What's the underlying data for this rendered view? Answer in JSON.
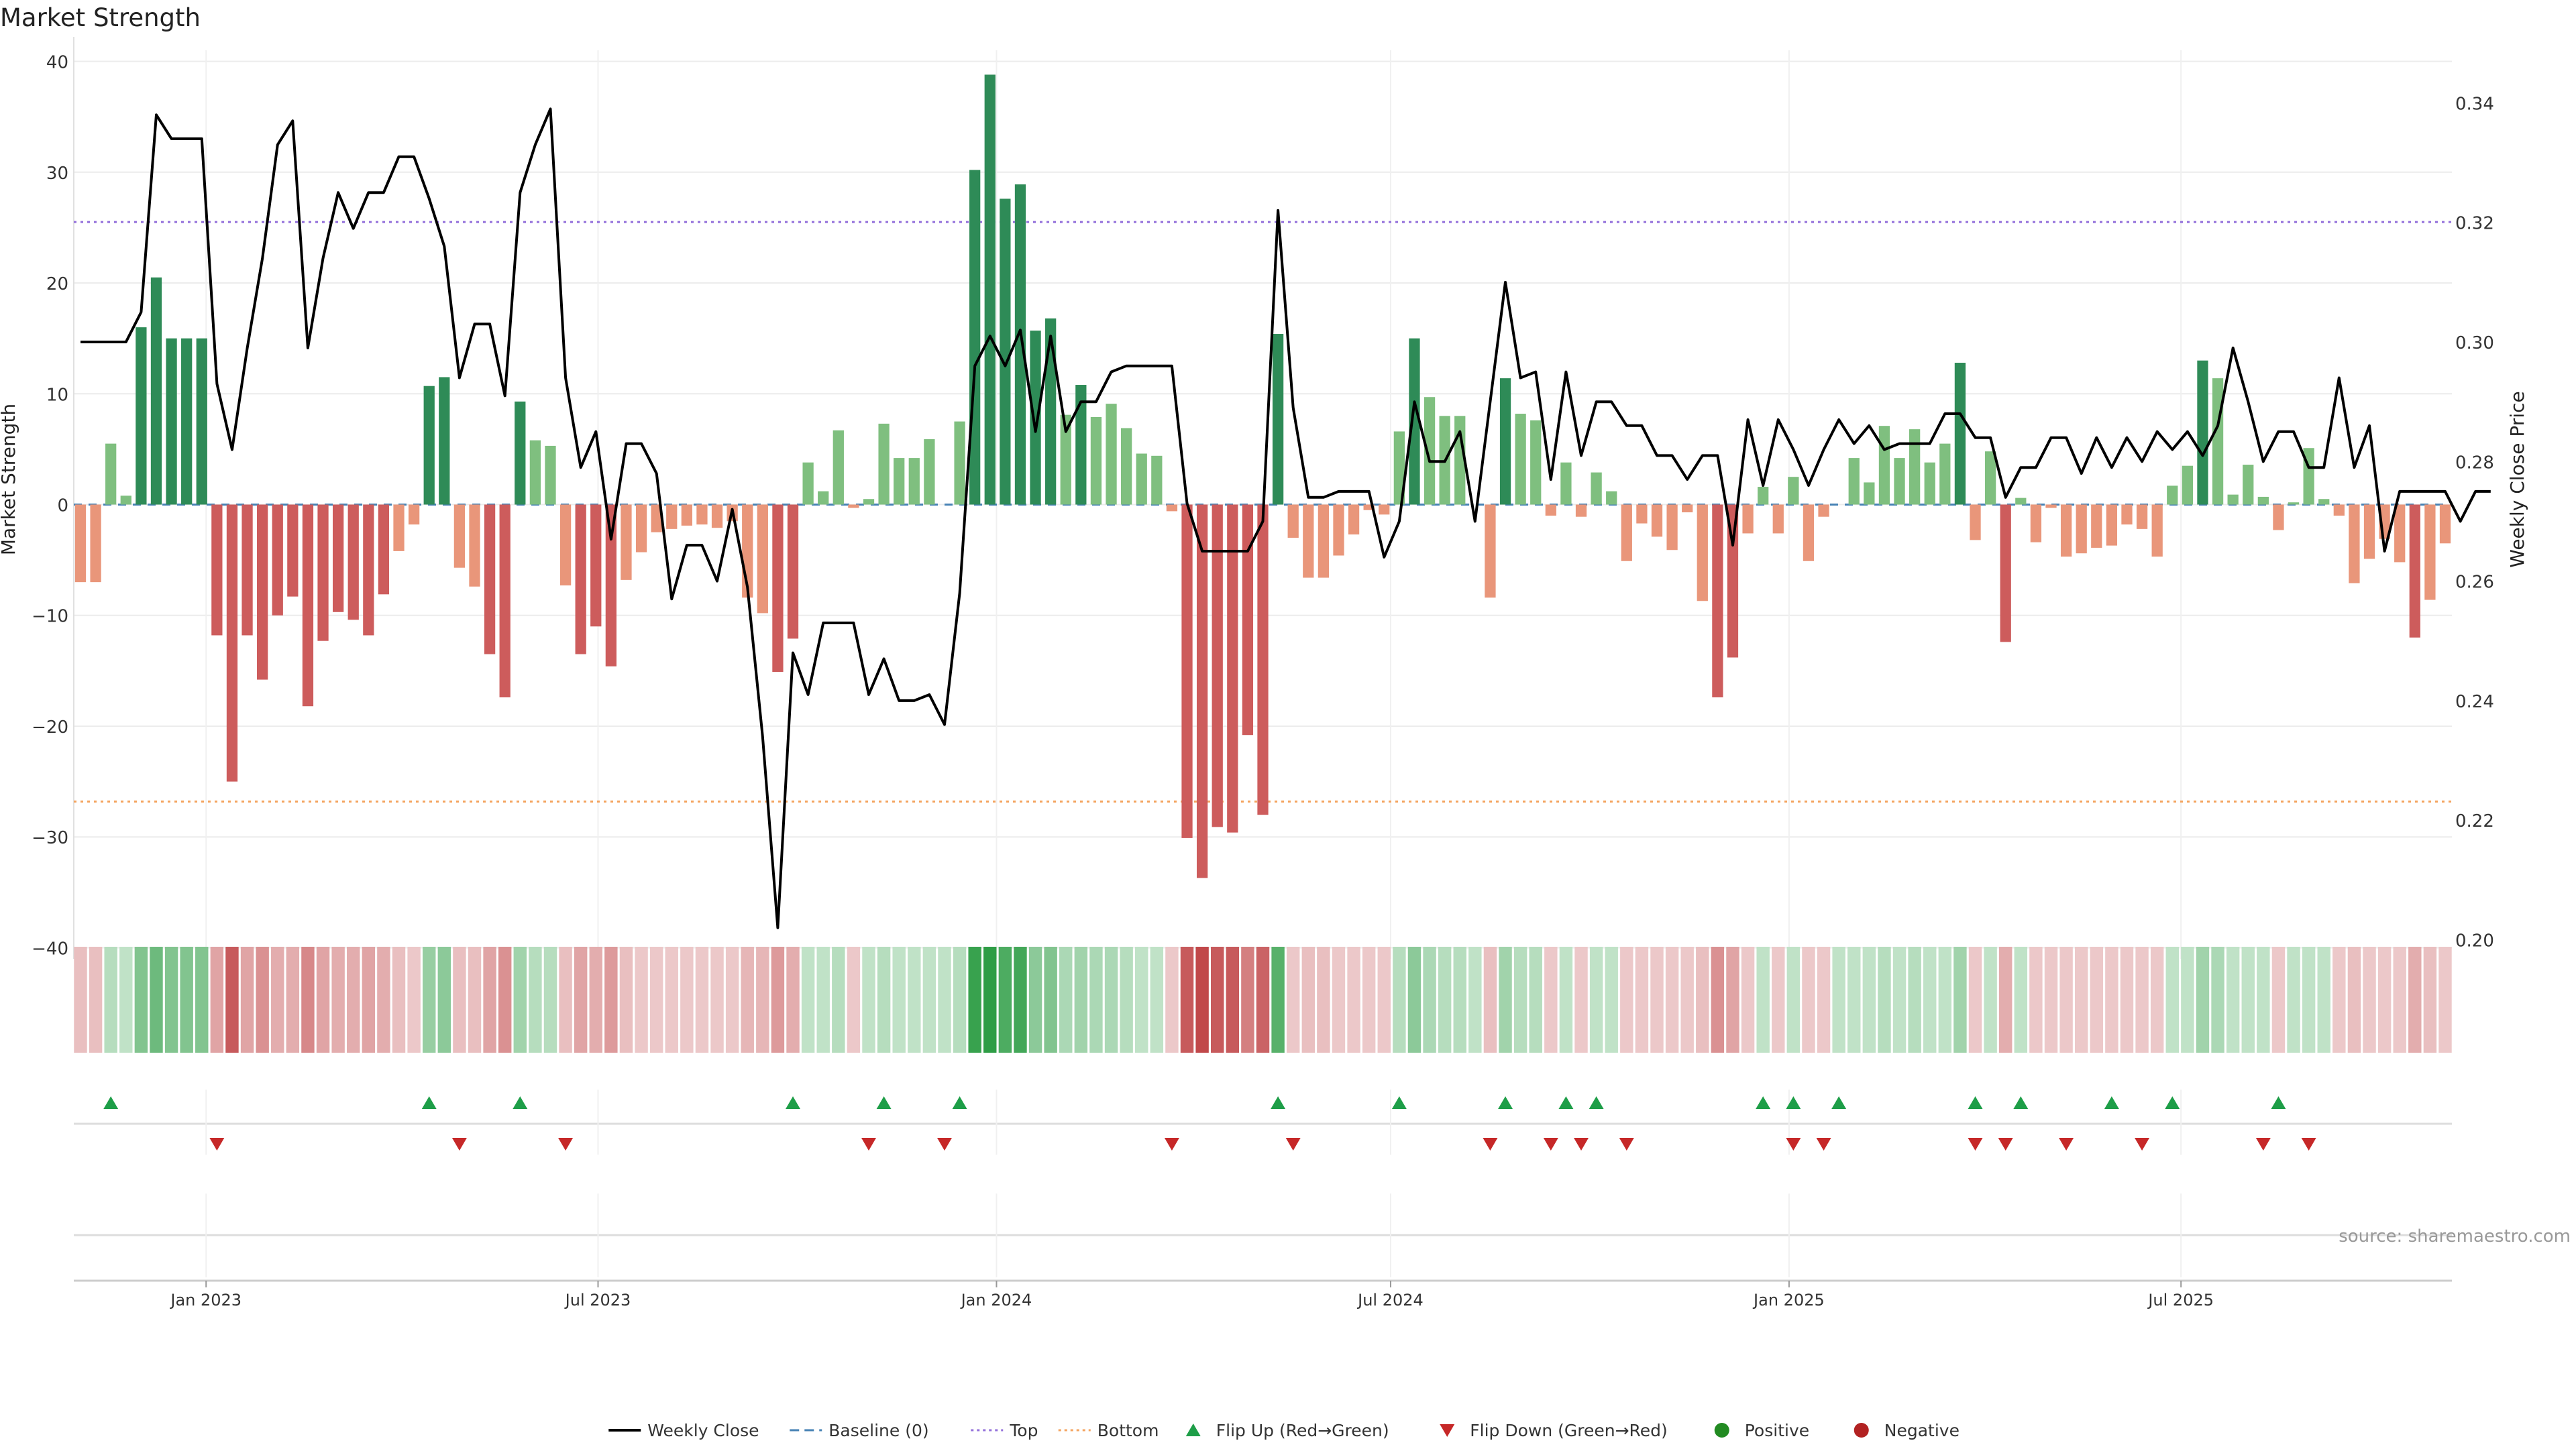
{
  "chart_data": {
    "type": "bar",
    "title": "Market Strength",
    "ylabel": "Market Strength",
    "y2label": "Weekly Close Price",
    "ylim": [
      -41,
      41
    ],
    "y2lim": [
      0.1968,
      0.3488
    ],
    "yticks": [
      40,
      30,
      20,
      10,
      0,
      -10,
      -20,
      -30,
      -40
    ],
    "y2ticks": [
      "0.34",
      "0.32",
      "0.30",
      "0.28",
      "0.26",
      "0.24",
      "0.22",
      "0.20"
    ],
    "y2tick_values": [
      0.34,
      0.32,
      0.3,
      0.28,
      0.26,
      0.24,
      0.22,
      0.2
    ],
    "top_line": 25.5,
    "bottom_line": -26.8,
    "x_start_date": "2022-11-04",
    "x_ticks": [
      "Jan 2023",
      "Jul 2023",
      "Jan 2024",
      "Jul 2024",
      "Jan 2025",
      "Jul 2025"
    ],
    "x_tick_dates": [
      "2023-01-01",
      "2023-07-01",
      "2024-01-01",
      "2024-07-01",
      "2025-01-01",
      "2025-07-01"
    ],
    "grid": true,
    "source": "source: sharemaestro.com",
    "colors": {
      "strong_green": "#2e8b57",
      "light_green": "#7fbf7f",
      "strong_red": "#cd5c5c",
      "light_red": "#e9967a",
      "close_line": "#000000",
      "baseline": "#4682b4",
      "top": "#9370db",
      "bottom": "#f4a460",
      "flip_up": "#1e9e48",
      "flip_down": "#c62828",
      "positive": "#228b22",
      "negative": "#b22222"
    },
    "legend": [
      {
        "label": "Weekly Close",
        "kind": "line",
        "color": "#000000"
      },
      {
        "label": "Baseline (0)",
        "kind": "dash",
        "color": "#4682b4"
      },
      {
        "label": "Top",
        "kind": "dot",
        "color": "#9370db"
      },
      {
        "label": "Bottom",
        "kind": "dot",
        "color": "#f4a460"
      },
      {
        "label": "Flip Up (Red→Green)",
        "kind": "tri-up",
        "color": "#1e9e48"
      },
      {
        "label": "Flip Down (Green→Red)",
        "kind": "tri-down",
        "color": "#c62828"
      },
      {
        "label": "Positive",
        "kind": "circle",
        "color": "#228b22"
      },
      {
        "label": "Negative",
        "kind": "circle",
        "color": "#b22222"
      }
    ],
    "legend_position": "bottom-center",
    "strength": [
      -7,
      -7,
      5.5,
      0.8,
      16,
      20.5,
      15,
      15,
      15,
      -11.8,
      -25,
      -11.8,
      -15.8,
      -10,
      -8.3,
      -18.2,
      -12.3,
      -9.7,
      -10.4,
      -11.8,
      -8.1,
      -4.2,
      -1.8,
      10.7,
      11.5,
      -5.7,
      -7.4,
      -13.5,
      -17.4,
      9.3,
      5.8,
      5.3,
      -7.3,
      -13.5,
      -11,
      -14.6,
      -6.8,
      -4.3,
      -2.5,
      -2.2,
      -1.9,
      -1.8,
      -2.1,
      -1.5,
      -8.4,
      -9.8,
      -15.1,
      -12.1,
      3.8,
      1.2,
      6.7,
      -0.3,
      0.5,
      7.3,
      4.2,
      4.2,
      5.9,
      0,
      7.5,
      30.2,
      38.8,
      27.6,
      28.9,
      15.7,
      16.8,
      8.1,
      10.8,
      7.9,
      9.1,
      6.9,
      4.6,
      4.4,
      -0.6,
      -30.1,
      -33.7,
      -29.1,
      -29.6,
      -20.8,
      -28,
      15.4,
      -3,
      -6.6,
      -6.6,
      -4.6,
      -2.7,
      -0.5,
      -0.9,
      6.6,
      15,
      9.7,
      8,
      8,
      0,
      -8.4,
      11.4,
      8.2,
      7.6,
      -1,
      3.8,
      -1.1,
      2.9,
      1.2,
      -5.1,
      -1.7,
      -2.9,
      -4.1,
      -0.7,
      -8.7,
      -17.4,
      -13.8,
      -2.6,
      1.6,
      -2.6,
      2.5,
      -5.1,
      -1.1,
      0,
      4.2,
      2,
      7.1,
      4.2,
      6.8,
      3.8,
      5.5,
      12.8,
      -3.2,
      4.8,
      -12.4,
      0.6,
      -3.4,
      -0.3,
      -4.7,
      -4.4,
      -3.9,
      -3.7,
      -1.8,
      -2.2,
      -4.7,
      1.7,
      3.5,
      13,
      11.4,
      0.9,
      3.6,
      0.7,
      -2.3,
      0.2,
      5.1,
      0.5,
      -1,
      -7.1,
      -4.9,
      -3.1,
      -5.2,
      -12,
      -8.6,
      -3.5
    ],
    "weekly_close": [
      0.3,
      0.3,
      0.3,
      0.3,
      0.305,
      0.338,
      0.334,
      0.334,
      0.334,
      0.293,
      0.282,
      0.299,
      0.314,
      0.333,
      0.337,
      0.299,
      0.314,
      0.325,
      0.319,
      0.325,
      0.325,
      0.331,
      0.331,
      0.324,
      0.316,
      0.294,
      0.303,
      0.303,
      0.291,
      0.325,
      0.333,
      0.339,
      0.294,
      0.279,
      0.285,
      0.267,
      0.283,
      0.283,
      0.278,
      0.257,
      0.266,
      0.266,
      0.26,
      0.272,
      0.259,
      0.234,
      0.202,
      0.248,
      0.241,
      0.253,
      0.253,
      0.253,
      0.241,
      0.247,
      0.24,
      0.24,
      0.241,
      0.236,
      0.258,
      0.296,
      0.301,
      0.296,
      0.302,
      0.285,
      0.301,
      0.285,
      0.29,
      0.29,
      0.295,
      0.296,
      0.296,
      0.296,
      0.296,
      0.273,
      0.265,
      0.265,
      0.265,
      0.265,
      0.27,
      0.322,
      0.289,
      0.274,
      0.274,
      0.275,
      0.275,
      0.275,
      0.264,
      0.27,
      0.29,
      0.28,
      0.28,
      0.285,
      0.27,
      0.29,
      0.31,
      0.294,
      0.295,
      0.277,
      0.295,
      0.281,
      0.29,
      0.29,
      0.286,
      0.286,
      0.281,
      0.281,
      0.277,
      0.281,
      0.281,
      0.266,
      0.287,
      0.276,
      0.287,
      0.282,
      0.276,
      0.282,
      0.287,
      0.283,
      0.286,
      0.282,
      0.283,
      0.283,
      0.283,
      0.288,
      0.288,
      0.284,
      0.284,
      0.274,
      0.279,
      0.279,
      0.284,
      0.284,
      0.278,
      0.284,
      0.279,
      0.284,
      0.28,
      0.285,
      0.282,
      0.285,
      0.281,
      0.286,
      0.299,
      0.29,
      0.28,
      0.285,
      0.285,
      0.279,
      0.279,
      0.294,
      0.279,
      0.286,
      0.265,
      0.275,
      0.275,
      0.275,
      0.275,
      0.27,
      0.275,
      0.275
    ],
    "heat_alpha": [
      0.35,
      0.35,
      0.35,
      0.3,
      0.6,
      0.7,
      0.6,
      0.6,
      0.6,
      0.5,
      0.9,
      0.5,
      0.6,
      0.45,
      0.45,
      0.65,
      0.5,
      0.45,
      0.45,
      0.5,
      0.45,
      0.35,
      0.3,
      0.5,
      0.55,
      0.35,
      0.35,
      0.5,
      0.6,
      0.45,
      0.35,
      0.35,
      0.35,
      0.5,
      0.45,
      0.55,
      0.35,
      0.3,
      0.3,
      0.3,
      0.3,
      0.3,
      0.3,
      0.3,
      0.4,
      0.4,
      0.55,
      0.45,
      0.3,
      0.3,
      0.35,
      0.3,
      0.3,
      0.35,
      0.3,
      0.3,
      0.3,
      0.3,
      0.35,
      0.95,
      1,
      0.85,
      0.9,
      0.55,
      0.6,
      0.4,
      0.45,
      0.4,
      0.4,
      0.35,
      0.3,
      0.3,
      0.3,
      0.9,
      1,
      0.9,
      0.9,
      0.7,
      0.85,
      0.8,
      0.3,
      0.35,
      0.35,
      0.3,
      0.3,
      0.3,
      0.3,
      0.35,
      0.55,
      0.4,
      0.35,
      0.35,
      0.3,
      0.35,
      0.45,
      0.35,
      0.35,
      0.3,
      0.3,
      0.3,
      0.3,
      0.3,
      0.3,
      0.3,
      0.3,
      0.3,
      0.3,
      0.35,
      0.6,
      0.5,
      0.3,
      0.3,
      0.3,
      0.3,
      0.3,
      0.3,
      0.3,
      0.3,
      0.3,
      0.35,
      0.3,
      0.35,
      0.3,
      0.3,
      0.45,
      0.3,
      0.3,
      0.45,
      0.3,
      0.3,
      0.3,
      0.3,
      0.3,
      0.3,
      0.3,
      0.3,
      0.3,
      0.3,
      0.3,
      0.3,
      0.45,
      0.4,
      0.3,
      0.3,
      0.3,
      0.3,
      0.3,
      0.3,
      0.3,
      0.3,
      0.35,
      0.3,
      0.3,
      0.3,
      0.45,
      0.35,
      0.3
    ],
    "flip_up_weeks": [
      2,
      23,
      29,
      47,
      53,
      58,
      79,
      87,
      94,
      98,
      100,
      111,
      113,
      116,
      125,
      128,
      134,
      138,
      145
    ],
    "flip_down_weeks": [
      9,
      25,
      32,
      52,
      57,
      72,
      80,
      93,
      97,
      99,
      102,
      113,
      115,
      125,
      127,
      131,
      136,
      144,
      147
    ]
  }
}
